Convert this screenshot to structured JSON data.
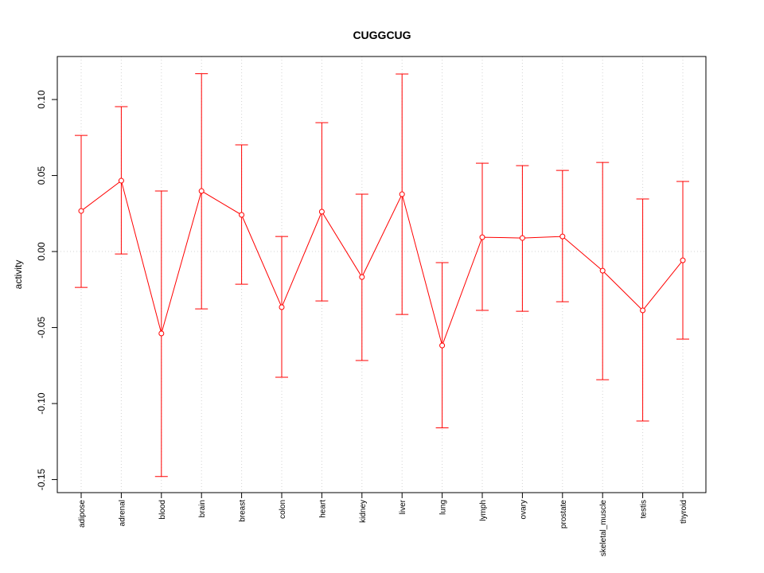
{
  "chart_data": {
    "type": "line",
    "title": "CUGGCUG",
    "xlabel": "",
    "ylabel": "activity",
    "ylim": [
      -0.1586,
      0.1283
    ],
    "yticks": [
      -0.15,
      -0.1,
      -0.05,
      0.0,
      0.05,
      0.1
    ],
    "ytick_labels": [
      "-0.15",
      "-0.10",
      "-0.05",
      "0.00",
      "0.05",
      "0.10"
    ],
    "grid": true,
    "series_color": "#ff0000",
    "categories": [
      "adipose",
      "adrenal",
      "blood",
      "brain",
      "breast",
      "colon",
      "heart",
      "kidney",
      "liver",
      "lung",
      "lymph",
      "ovary",
      "prostate",
      "skeletal_muscle",
      "testis",
      "thyroid"
    ],
    "values": [
      0.0267,
      0.0466,
      -0.0539,
      0.0398,
      0.0241,
      -0.0366,
      0.0262,
      -0.0168,
      0.0377,
      -0.0618,
      0.0094,
      0.0089,
      0.0099,
      -0.0126,
      -0.0387,
      -0.0058
    ],
    "upper": [
      0.0764,
      0.0953,
      0.0398,
      0.117,
      0.0702,
      0.0099,
      0.0848,
      0.0377,
      0.1168,
      -0.0073,
      0.0581,
      0.0565,
      0.0534,
      0.0586,
      0.0346,
      0.0461
    ],
    "lower": [
      -0.0236,
      -0.0016,
      -0.148,
      -0.0377,
      -0.0215,
      -0.0827,
      -0.0325,
      -0.0717,
      -0.0414,
      -0.116,
      -0.0387,
      -0.0393,
      -0.033,
      -0.0843,
      -0.1115,
      -0.0576
    ]
  }
}
